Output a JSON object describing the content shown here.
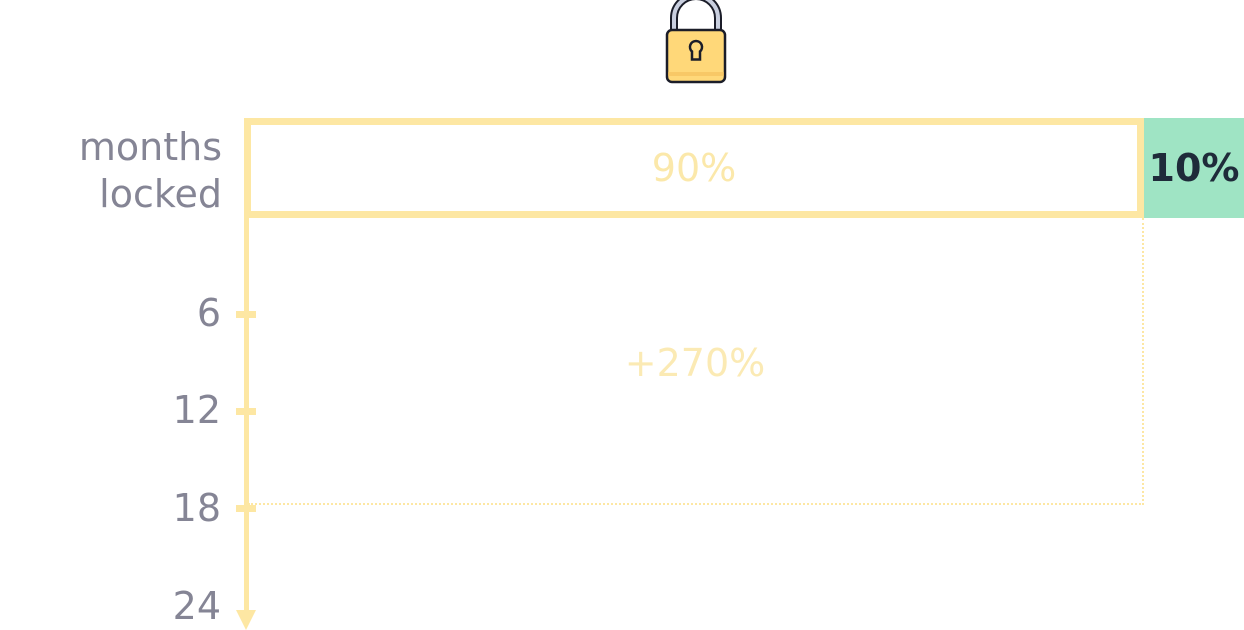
{
  "icon": "lock-icon",
  "colors": {
    "locked": "#fde7a3",
    "unlocked": "#9fe4c4",
    "axis_text": "#858595",
    "dark_text": "#1f2b3a"
  },
  "axis": {
    "title": "months\nlocked",
    "ticks": [
      "6",
      "12",
      "18",
      "24"
    ]
  },
  "locked": {
    "label": "90%"
  },
  "unlocked": {
    "label": "10%"
  },
  "bonus": {
    "label": "+270%"
  }
}
